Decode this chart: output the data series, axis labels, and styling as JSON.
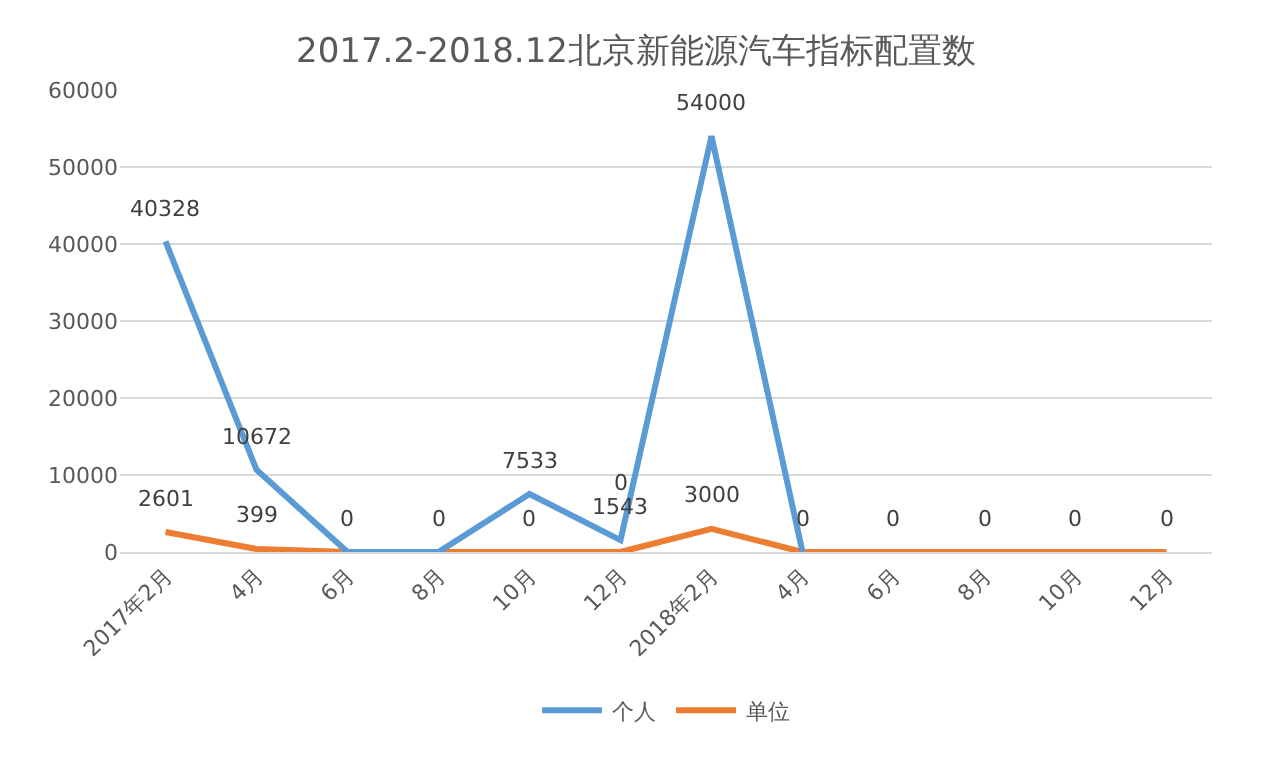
{
  "chart_data": {
    "type": "line",
    "title": "2017.2-2018.12北京新能源汽车指标配置数",
    "categories": [
      "2017年2月",
      "4月",
      "6月",
      "8月",
      "10月",
      "12月",
      "2018年2月",
      "4月",
      "6月",
      "8月",
      "10月",
      "12月"
    ],
    "series": [
      {
        "name": "个人",
        "color": "#5b9bd5",
        "values": [
          40328,
          10672,
          0,
          0,
          7533,
          1543,
          54000,
          0,
          null,
          null,
          null,
          null
        ],
        "value_labels": [
          "40328",
          "10672",
          null,
          null,
          "7533",
          "1543",
          "54000",
          null,
          null,
          null,
          null,
          null
        ]
      },
      {
        "name": "单位",
        "color": "#ed7d31",
        "values": [
          2601,
          399,
          0,
          0,
          0,
          0,
          3000,
          0,
          0,
          0,
          0,
          0
        ],
        "value_labels": [
          "2601",
          "399",
          "0",
          "0",
          "0",
          "0",
          "3000",
          "0",
          "0",
          "0",
          "0",
          "0"
        ]
      }
    ],
    "ylim": [
      0,
      60000
    ],
    "yticks": [
      0,
      10000,
      20000,
      30000,
      40000,
      50000,
      60000
    ],
    "grid": "y",
    "legend": "bottom",
    "marker": "none",
    "line_style": "solid"
  }
}
